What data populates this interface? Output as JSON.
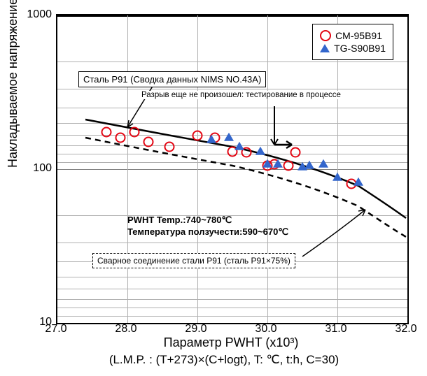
{
  "chart": {
    "type": "scatter",
    "y_label": "Накладываемое напряжение (MPa)",
    "x_label": "Параметр PWHT (x10³)",
    "x_sublabel": "(L.M.P. : (T+273)×(C+logt), T: ℃, t:h, C=30)",
    "background_color": "#ffffff",
    "grid_color": "#b0b0b0",
    "border_color": "#000000",
    "y_scale": "log",
    "ylim": [
      10,
      1000
    ],
    "xlim": [
      27.0,
      32.0
    ],
    "y_ticks": [
      10,
      100,
      1000
    ],
    "y_tick_labels": [
      "10",
      "100",
      "1000"
    ],
    "x_ticks": [
      27.0,
      28.0,
      29.0,
      30.0,
      31.0,
      32.0
    ],
    "x_tick_labels": [
      "27.0",
      "28.0",
      "29.0",
      "30.0",
      "31.0",
      "32.0"
    ],
    "y_minor_grid": [
      20,
      30,
      40,
      50,
      60,
      70,
      80,
      90,
      200,
      300,
      400,
      500,
      600,
      700,
      800,
      900
    ],
    "legend": {
      "items": [
        {
          "marker": "circle",
          "color": "#e30613",
          "label": "CM-95B91"
        },
        {
          "marker": "triangle",
          "color": "#3366cc",
          "label": "TG-S90B91"
        }
      ]
    },
    "series_circle": {
      "color": "#e30613",
      "points": [
        {
          "x": 27.7,
          "y": 175
        },
        {
          "x": 27.9,
          "y": 160
        },
        {
          "x": 28.1,
          "y": 175
        },
        {
          "x": 28.3,
          "y": 150
        },
        {
          "x": 28.6,
          "y": 140
        },
        {
          "x": 29.0,
          "y": 165
        },
        {
          "x": 29.25,
          "y": 160
        },
        {
          "x": 29.5,
          "y": 130
        },
        {
          "x": 29.7,
          "y": 128
        },
        {
          "x": 30.0,
          "y": 105
        },
        {
          "x": 30.1,
          "y": 108
        },
        {
          "x": 30.3,
          "y": 105
        },
        {
          "x": 30.4,
          "y": 128
        },
        {
          "x": 31.2,
          "y": 80
        }
      ]
    },
    "series_triangle": {
      "color": "#3366cc",
      "points": [
        {
          "x": 29.2,
          "y": 155
        },
        {
          "x": 29.45,
          "y": 160
        },
        {
          "x": 29.6,
          "y": 140
        },
        {
          "x": 29.9,
          "y": 130
        },
        {
          "x": 30.0,
          "y": 108
        },
        {
          "x": 30.15,
          "y": 108
        },
        {
          "x": 30.5,
          "y": 103
        },
        {
          "x": 30.6,
          "y": 105
        },
        {
          "x": 30.8,
          "y": 108
        },
        {
          "x": 31.0,
          "y": 88
        },
        {
          "x": 31.3,
          "y": 82
        }
      ]
    },
    "solid_line": [
      {
        "x": 27.4,
        "y": 210
      },
      {
        "x": 28.5,
        "y": 170
      },
      {
        "x": 29.5,
        "y": 140
      },
      {
        "x": 30.5,
        "y": 110
      },
      {
        "x": 31.5,
        "y": 75
      },
      {
        "x": 32.0,
        "y": 55
      }
    ],
    "dashed_line": [
      {
        "x": 27.4,
        "y": 160
      },
      {
        "x": 28.5,
        "y": 128
      },
      {
        "x": 29.5,
        "y": 105
      },
      {
        "x": 30.5,
        "y": 82
      },
      {
        "x": 31.5,
        "y": 57
      },
      {
        "x": 32.0,
        "y": 42
      }
    ],
    "annotations": {
      "steel_box": "Сталь P91 (Сводка данных NIMS NO.43A)",
      "rupture_note": "Разрыв еще не произошел: тестирование в процессе",
      "pwht_temp": "PWHT Temp.:740~780℃",
      "creep_temp": "Температура ползучести:590~670℃",
      "welded_box": "Сварное соединение стали P91 (сталь P91×75%)"
    }
  }
}
